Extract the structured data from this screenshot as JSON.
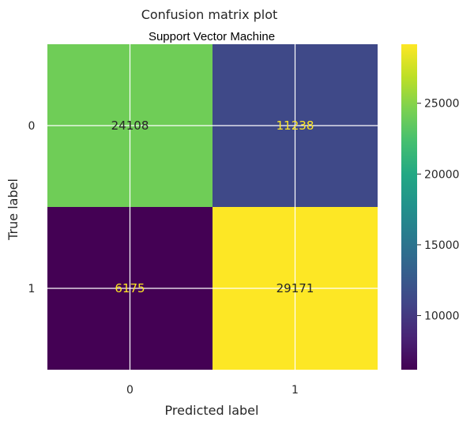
{
  "chart_data": {
    "type": "heatmap",
    "title": "Confusion matrix plot",
    "subtitle": "Support Vector Machine",
    "xlabel": "Predicted label",
    "ylabel": "True label",
    "x_categories": [
      "0",
      "1"
    ],
    "y_categories": [
      "0",
      "1"
    ],
    "values": [
      [
        24108,
        11238
      ],
      [
        6175,
        29171
      ]
    ],
    "colormap": "viridis",
    "colorbar": {
      "range": [
        6175,
        29171
      ],
      "ticks": [
        "10000",
        "15000",
        "20000",
        "25000"
      ]
    },
    "grid": true
  }
}
